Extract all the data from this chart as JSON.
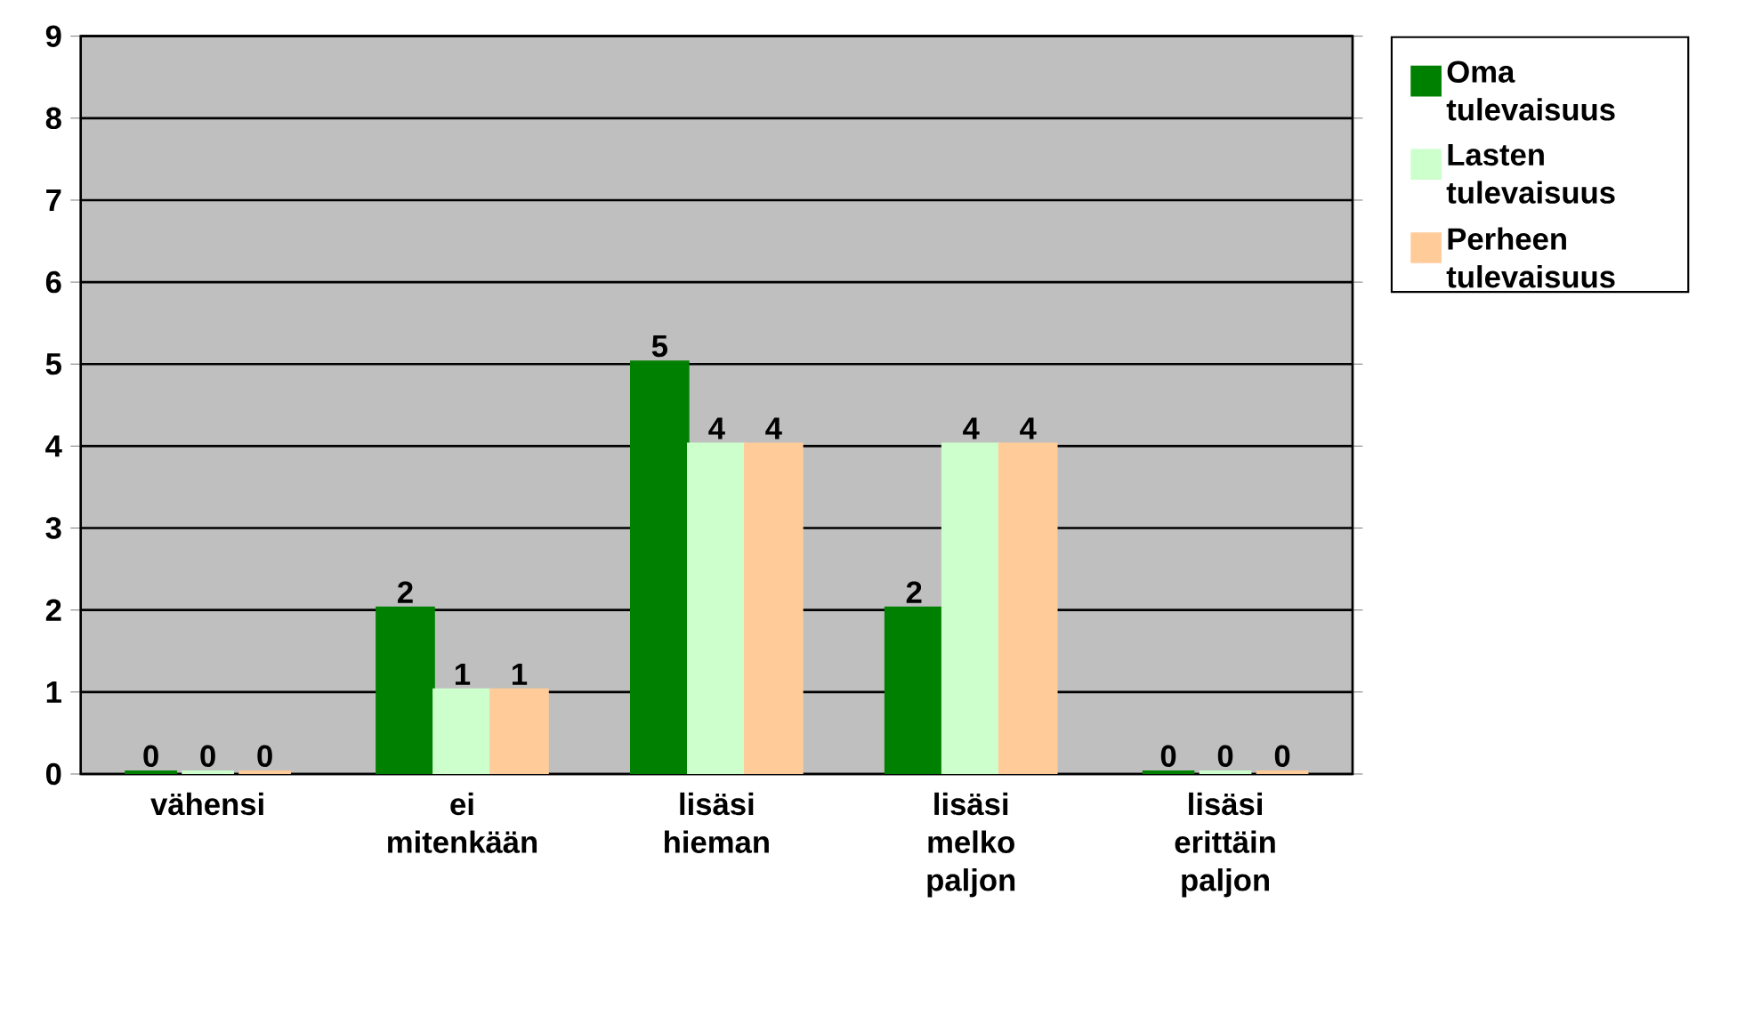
{
  "chart_data": {
    "type": "bar",
    "categories": [
      "vähensi",
      "ei mitenkään",
      "lisäsi hieman",
      "lisäsi melko paljon",
      "lisäsi erittäin paljon"
    ],
    "series": [
      {
        "name": "Oma tulevaisuus",
        "color": "#008000",
        "values": [
          0,
          2,
          5,
          2,
          0
        ]
      },
      {
        "name": "Lasten tulevaisuus",
        "color": "#ccffcc",
        "values": [
          0,
          1,
          4,
          4,
          0
        ]
      },
      {
        "name": "Perheen tulevaisuus",
        "color": "#ffcc99",
        "values": [
          0,
          1,
          4,
          4,
          0
        ]
      }
    ],
    "ylim": [
      0,
      9
    ],
    "yticks": [
      0,
      1,
      2,
      3,
      4,
      5,
      6,
      7,
      8,
      9
    ],
    "grid": "y",
    "legend": "right",
    "data_labels": true
  }
}
